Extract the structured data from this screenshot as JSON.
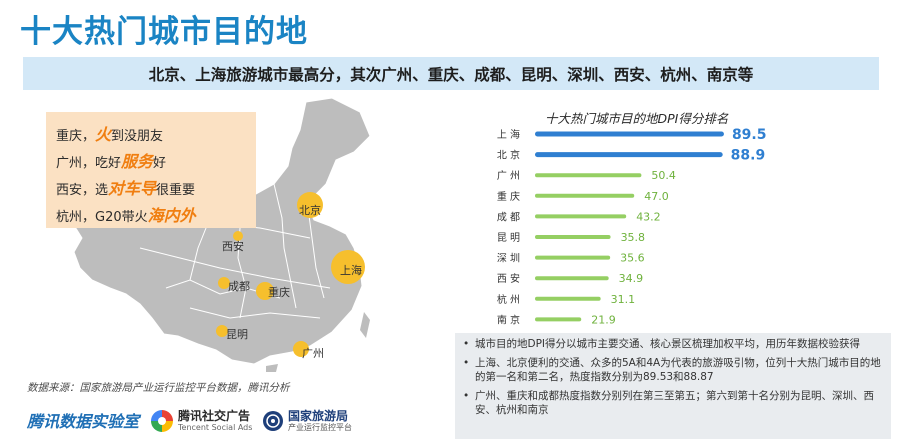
{
  "page": {
    "title": "十大热门城市目的地",
    "banner": "北京、上海旅游城市最高分，其次广州、重庆、成都、昆明、深圳、西安、杭州、南京等"
  },
  "callout": [
    {
      "pre": "重庆，",
      "hl": "火",
      "post": "到没朋友"
    },
    {
      "pre": "广州，吃好",
      "hl": "服务",
      "post": "好"
    },
    {
      "pre": "西安，选",
      "hl": "对车导",
      "post": "很重要"
    },
    {
      "pre": "杭州，G20带火",
      "hl": "海内外",
      "post": ""
    }
  ],
  "map": {
    "cities": [
      "北京",
      "上海",
      "西安",
      "成都",
      "重庆",
      "昆明",
      "广州"
    ],
    "colors": {
      "land": "#bdbdbd",
      "border": "#ffffff",
      "dot": "#f6bf2d"
    }
  },
  "source": "数据来源：国家旅游局产业运行监控平台数据，腾讯分析",
  "logos": {
    "tencent_lab": "腾讯数据实验室",
    "ads_cn": "腾讯社交广告",
    "ads_en": "Tencent Social Ads",
    "gov_cn": "国家旅游局",
    "gov_sub": "产业运行监控平台"
  },
  "chart_data": {
    "type": "bar",
    "orientation": "horizontal",
    "title": "十大热门城市目的地DPI得分排名",
    "categories": [
      "上海",
      "北京",
      "广州",
      "重庆",
      "成都",
      "昆明",
      "深圳",
      "西安",
      "杭州",
      "南京"
    ],
    "values": [
      89.5,
      88.9,
      50.4,
      47.0,
      43.2,
      35.8,
      35.6,
      34.9,
      31.1,
      21.9
    ],
    "value_labels": [
      "89.5",
      "88.9",
      "50.4",
      "47.0",
      "43.2",
      "35.8",
      "35.6",
      "34.9",
      "31.1",
      "21.9"
    ],
    "colors": {
      "top": "#2f7fd1",
      "rest": "#95cf63",
      "label_rest": "#6fb23d"
    },
    "xlabel": "",
    "ylabel": ""
  },
  "notes": [
    "城市目的地DPI得分以城市主要交通、核心景区梳理加权平均，用历年数据校验获得",
    "上海、北京便利的交通、众多的5A和4A为代表的旅游吸引物，位列十大热门城市目的地的第一名和第二名，热度指数分别为89.53和88.87",
    "广州、重庆和成都热度指数分别列在第三至第五；第六到第十名分别为昆明、深圳、西安、杭州和南京"
  ]
}
